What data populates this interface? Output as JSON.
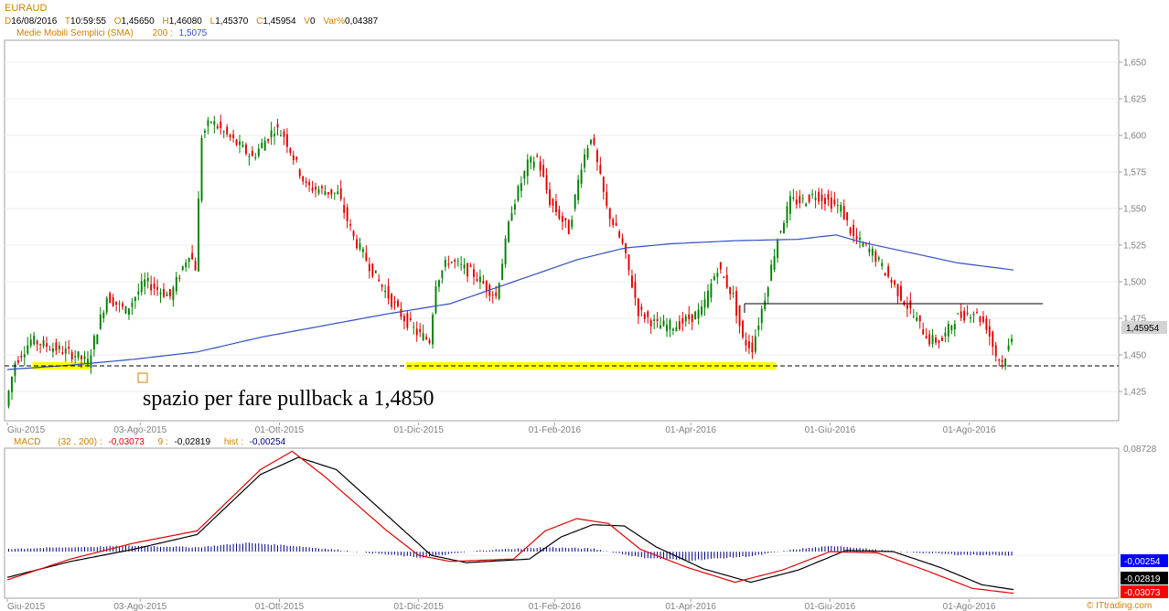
{
  "header": {
    "symbol": "EURAUD",
    "date_key": "D",
    "date": "16/08/2016",
    "time_key": "T",
    "time": "10:59:55",
    "open_key": "O",
    "open": "1,45650",
    "high_key": "H",
    "high": "1,46080",
    "low_key": "L",
    "low": "1,45370",
    "close_key": "C",
    "close": "1,45954",
    "volume_key": "V",
    "volume": "0",
    "varpct_key": "Var%",
    "varpct": "0,04387",
    "sma_label": "Medie Mobili Semplici (SMA)",
    "sma_period": "200 :",
    "sma_value": "1,5075"
  },
  "macd_header": {
    "label": "MACD",
    "params": "(32 , 200) :",
    "macd_value": "-0,03073",
    "signal_period": "9 :",
    "signal_value": "-0,02819",
    "hist_label": "hist :",
    "hist_value": "-0,00254"
  },
  "annotations": {
    "pullback_text": "spazio per fare pullback a 1,4850"
  },
  "watermark": "© ITtrading.com",
  "colors": {
    "bull": "#008000",
    "bear": "#e00000",
    "sma": "#3050c0",
    "macd": "#e00000",
    "signal": "#000000",
    "hist": "#000080",
    "header_orange": "#d08000",
    "support_zone": "#ffff00",
    "price_badge": "#d3d3d3",
    "hist_badge": "#0000ff",
    "signal_badge": "#000000",
    "macd_badge": "#ff0000"
  },
  "chart_data": [
    {
      "type": "candlestick",
      "symbol": "EURAUD",
      "y_ticks": [
        "1,425",
        "1,450",
        "1,475",
        "1,500",
        "1,525",
        "1,550",
        "1,575",
        "1,600",
        "1,625",
        "1,650"
      ],
      "y_tick_values": [
        1.425,
        1.45,
        1.475,
        1.5,
        1.525,
        1.55,
        1.575,
        1.6,
        1.625,
        1.65
      ],
      "ylim": [
        1.405,
        1.665
      ],
      "x_ticks": [
        "Giu-2015",
        "03-Ago-2015",
        "01-Ott-2015",
        "01-Dic-2015",
        "01-Feb-2016",
        "01-Apr-2016",
        "01-Giu-2016",
        "01-Ago-2016"
      ],
      "x_tick_index": [
        0,
        42,
        86,
        130,
        173,
        216,
        260,
        304
      ],
      "n_bars": 318,
      "price_path": [
        [
          0,
          1.415
        ],
        [
          3,
          1.445
        ],
        [
          8,
          1.46
        ],
        [
          15,
          1.455
        ],
        [
          22,
          1.45
        ],
        [
          26,
          1.445
        ],
        [
          32,
          1.49
        ],
        [
          38,
          1.48
        ],
        [
          44,
          1.5
        ],
        [
          52,
          1.49
        ],
        [
          58,
          1.52
        ],
        [
          60,
          1.51
        ],
        [
          62,
          1.6
        ],
        [
          65,
          1.61
        ],
        [
          70,
          1.6
        ],
        [
          78,
          1.585
        ],
        [
          85,
          1.605
        ],
        [
          88,
          1.6
        ],
        [
          95,
          1.565
        ],
        [
          105,
          1.56
        ],
        [
          110,
          1.53
        ],
        [
          118,
          1.5
        ],
        [
          124,
          1.48
        ],
        [
          130,
          1.465
        ],
        [
          134,
          1.46
        ],
        [
          136,
          1.5
        ],
        [
          140,
          1.515
        ],
        [
          148,
          1.505
        ],
        [
          155,
          1.49
        ],
        [
          160,
          1.55
        ],
        [
          165,
          1.58
        ],
        [
          168,
          1.585
        ],
        [
          172,
          1.555
        ],
        [
          178,
          1.535
        ],
        [
          182,
          1.58
        ],
        [
          185,
          1.6
        ],
        [
          190,
          1.55
        ],
        [
          195,
          1.525
        ],
        [
          200,
          1.48
        ],
        [
          206,
          1.47
        ],
        [
          212,
          1.47
        ],
        [
          220,
          1.48
        ],
        [
          225,
          1.51
        ],
        [
          230,
          1.49
        ],
        [
          233,
          1.46
        ],
        [
          236,
          1.455
        ],
        [
          240,
          1.49
        ],
        [
          244,
          1.53
        ],
        [
          248,
          1.555
        ],
        [
          252,
          1.555
        ],
        [
          256,
          1.56
        ],
        [
          264,
          1.55
        ],
        [
          268,
          1.53
        ],
        [
          274,
          1.52
        ],
        [
          280,
          1.5
        ],
        [
          286,
          1.48
        ],
        [
          292,
          1.46
        ],
        [
          296,
          1.46
        ],
        [
          300,
          1.475
        ],
        [
          306,
          1.48
        ],
        [
          310,
          1.47
        ],
        [
          313,
          1.45
        ],
        [
          315,
          1.445
        ],
        [
          318,
          1.46
        ]
      ],
      "sma200_path": [
        [
          0,
          1.44
        ],
        [
          20,
          1.443
        ],
        [
          40,
          1.447
        ],
        [
          60,
          1.452
        ],
        [
          80,
          1.462
        ],
        [
          100,
          1.47
        ],
        [
          120,
          1.478
        ],
        [
          140,
          1.485
        ],
        [
          160,
          1.5
        ],
        [
          180,
          1.515
        ],
        [
          195,
          1.523
        ],
        [
          210,
          1.526
        ],
        [
          230,
          1.528
        ],
        [
          250,
          1.529
        ],
        [
          262,
          1.532
        ],
        [
          270,
          1.527
        ],
        [
          285,
          1.52
        ],
        [
          300,
          1.513
        ],
        [
          318,
          1.508
        ]
      ],
      "levels": {
        "support": 1.4425,
        "resistance": 1.485,
        "resistance_from_index": 233,
        "last_price": "1,45954",
        "last_price_value": 1.45954
      },
      "support_zones": [
        {
          "from_index": 8,
          "to_index": 26
        },
        {
          "from_index": 126,
          "to_index": 243
        }
      ]
    },
    {
      "type": "line",
      "name": "MACD",
      "series": [
        {
          "name": "MACD",
          "points": [
            [
              0,
              -0.02
            ],
            [
              20,
              -0.003
            ],
            [
              40,
              0.01
            ],
            [
              60,
              0.02
            ],
            [
              80,
              0.07
            ],
            [
              90,
              0.085
            ],
            [
              100,
              0.065
            ],
            [
              120,
              0.02
            ],
            [
              130,
              0.0
            ],
            [
              140,
              -0.005
            ],
            [
              160,
              -0.003
            ],
            [
              170,
              0.02
            ],
            [
              180,
              0.03
            ],
            [
              190,
              0.026
            ],
            [
              200,
              0.005
            ],
            [
              215,
              -0.01
            ],
            [
              230,
              -0.022
            ],
            [
              245,
              -0.012
            ],
            [
              260,
              0.003
            ],
            [
              275,
              0.002
            ],
            [
              290,
              -0.012
            ],
            [
              305,
              -0.027
            ],
            [
              318,
              -0.031
            ]
          ]
        },
        {
          "name": "Signal",
          "points": [
            [
              0,
              -0.018
            ],
            [
              20,
              -0.005
            ],
            [
              40,
              0.005
            ],
            [
              60,
              0.017
            ],
            [
              80,
              0.066
            ],
            [
              92,
              0.08
            ],
            [
              104,
              0.07
            ],
            [
              122,
              0.028
            ],
            [
              134,
              0.0
            ],
            [
              145,
              -0.006
            ],
            [
              165,
              -0.003
            ],
            [
              175,
              0.015
            ],
            [
              185,
              0.025
            ],
            [
              195,
              0.024
            ],
            [
              205,
              0.007
            ],
            [
              220,
              -0.011
            ],
            [
              235,
              -0.022
            ],
            [
              250,
              -0.012
            ],
            [
              265,
              0.004
            ],
            [
              280,
              0.003
            ],
            [
              295,
              -0.01
            ],
            [
              308,
              -0.024
            ],
            [
              318,
              -0.028
            ]
          ]
        }
      ],
      "hist_points": [
        [
          0,
          0.002
        ],
        [
          40,
          0.004
        ],
        [
          60,
          0.003
        ],
        [
          75,
          0.006
        ],
        [
          90,
          0.004
        ],
        [
          110,
          0.0
        ],
        [
          130,
          -0.004
        ],
        [
          150,
          0.001
        ],
        [
          170,
          0.003
        ],
        [
          185,
          0.002
        ],
        [
          200,
          -0.004
        ],
        [
          215,
          -0.006
        ],
        [
          235,
          -0.003
        ],
        [
          250,
          0.002
        ],
        [
          262,
          0.004
        ],
        [
          280,
          0.0
        ],
        [
          300,
          -0.002
        ],
        [
          318,
          -0.0025
        ]
      ],
      "y_ticks": [
        "0,08728"
      ],
      "x_ticks": [
        "Giu-2015",
        "03-Ago-2015",
        "01-Ott-2015",
        "01-Dic-2015",
        "01-Feb-2016",
        "01-Apr-2016",
        "01-Giu-2016",
        "01-Ago-2016"
      ],
      "value_badges": [
        "-0,00254",
        "-0,02819",
        "-0,03073"
      ]
    }
  ]
}
